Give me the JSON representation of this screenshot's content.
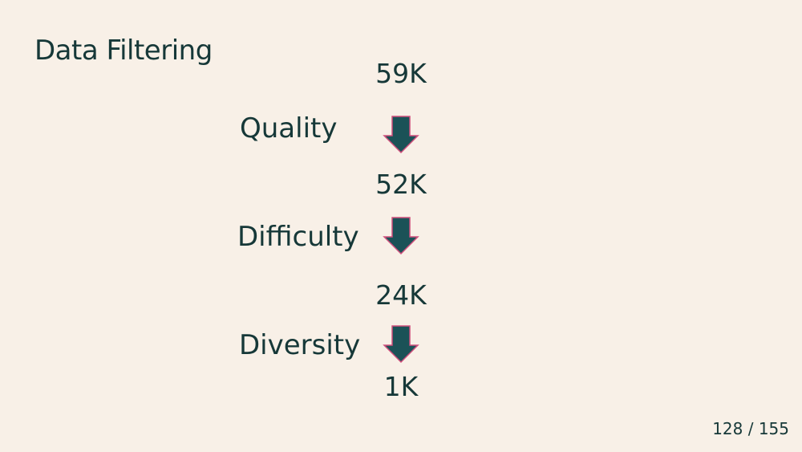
{
  "slide": {
    "title": "Data Filtering",
    "counts": [
      "59K",
      "52K",
      "24K",
      "1K"
    ],
    "steps": [
      "Quality",
      "Difficulty",
      "Diversity"
    ],
    "page_indicator": "128 / 155"
  },
  "colors": {
    "background": "#f8f0e7",
    "text": "#163838",
    "arrow_fill": "#1b5257",
    "arrow_outline": "#d0507d"
  },
  "icons": {
    "arrow": "arrow-down-icon"
  }
}
